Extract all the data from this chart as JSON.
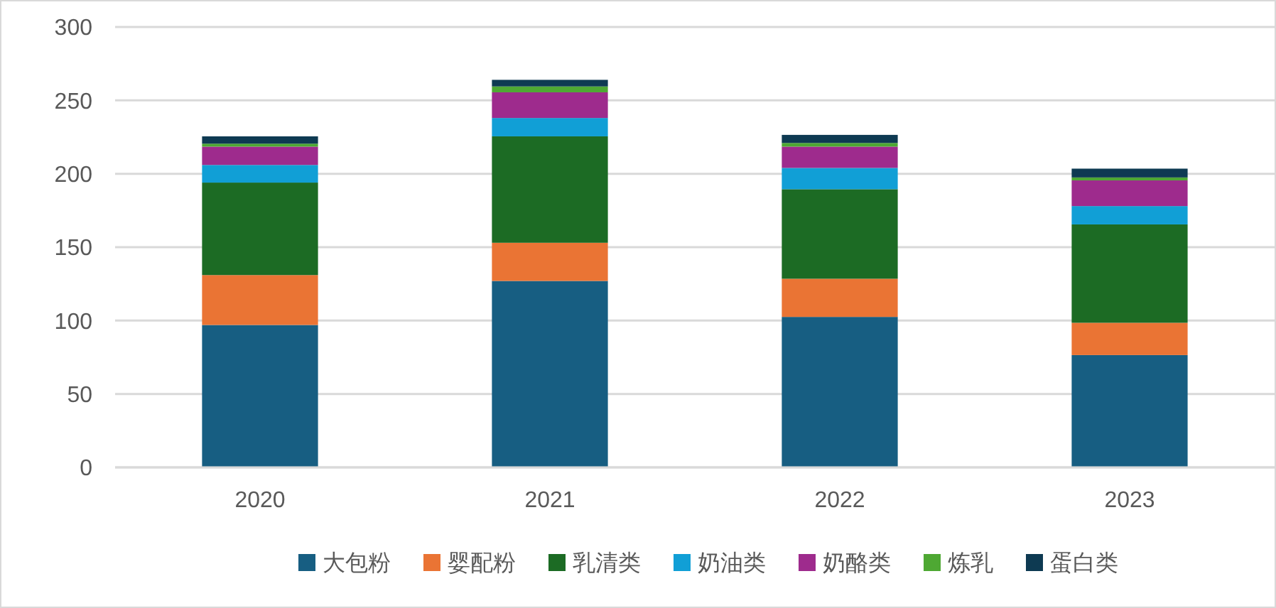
{
  "chart_data": {
    "type": "bar",
    "stacked": true,
    "categories": [
      "2020",
      "2021",
      "2022",
      "2023"
    ],
    "series": [
      {
        "name": "大包粉",
        "color": "#175e82",
        "values": [
          97,
          127,
          102.5,
          76.5
        ]
      },
      {
        "name": "婴配粉",
        "color": "#ea7434",
        "values": [
          34,
          26,
          26,
          22
        ]
      },
      {
        "name": "乳清类",
        "color": "#1c6b24",
        "values": [
          63,
          72.5,
          61,
          67
        ]
      },
      {
        "name": "奶油类",
        "color": "#119fd6",
        "values": [
          12,
          12.5,
          14.5,
          12.5
        ]
      },
      {
        "name": "奶酪类",
        "color": "#9e2b8d",
        "values": [
          12.5,
          17.5,
          14.5,
          17.5
        ]
      },
      {
        "name": "炼乳",
        "color": "#4ea833",
        "values": [
          2,
          4,
          2.5,
          2
        ]
      },
      {
        "name": "蛋白类",
        "color": "#0e3a52",
        "values": [
          5,
          4.5,
          5.5,
          6
        ]
      }
    ],
    "ylim": [
      0,
      300
    ],
    "yticks": [
      0,
      50,
      100,
      150,
      200,
      250,
      300
    ],
    "grid": "y",
    "legend": "bottom"
  }
}
